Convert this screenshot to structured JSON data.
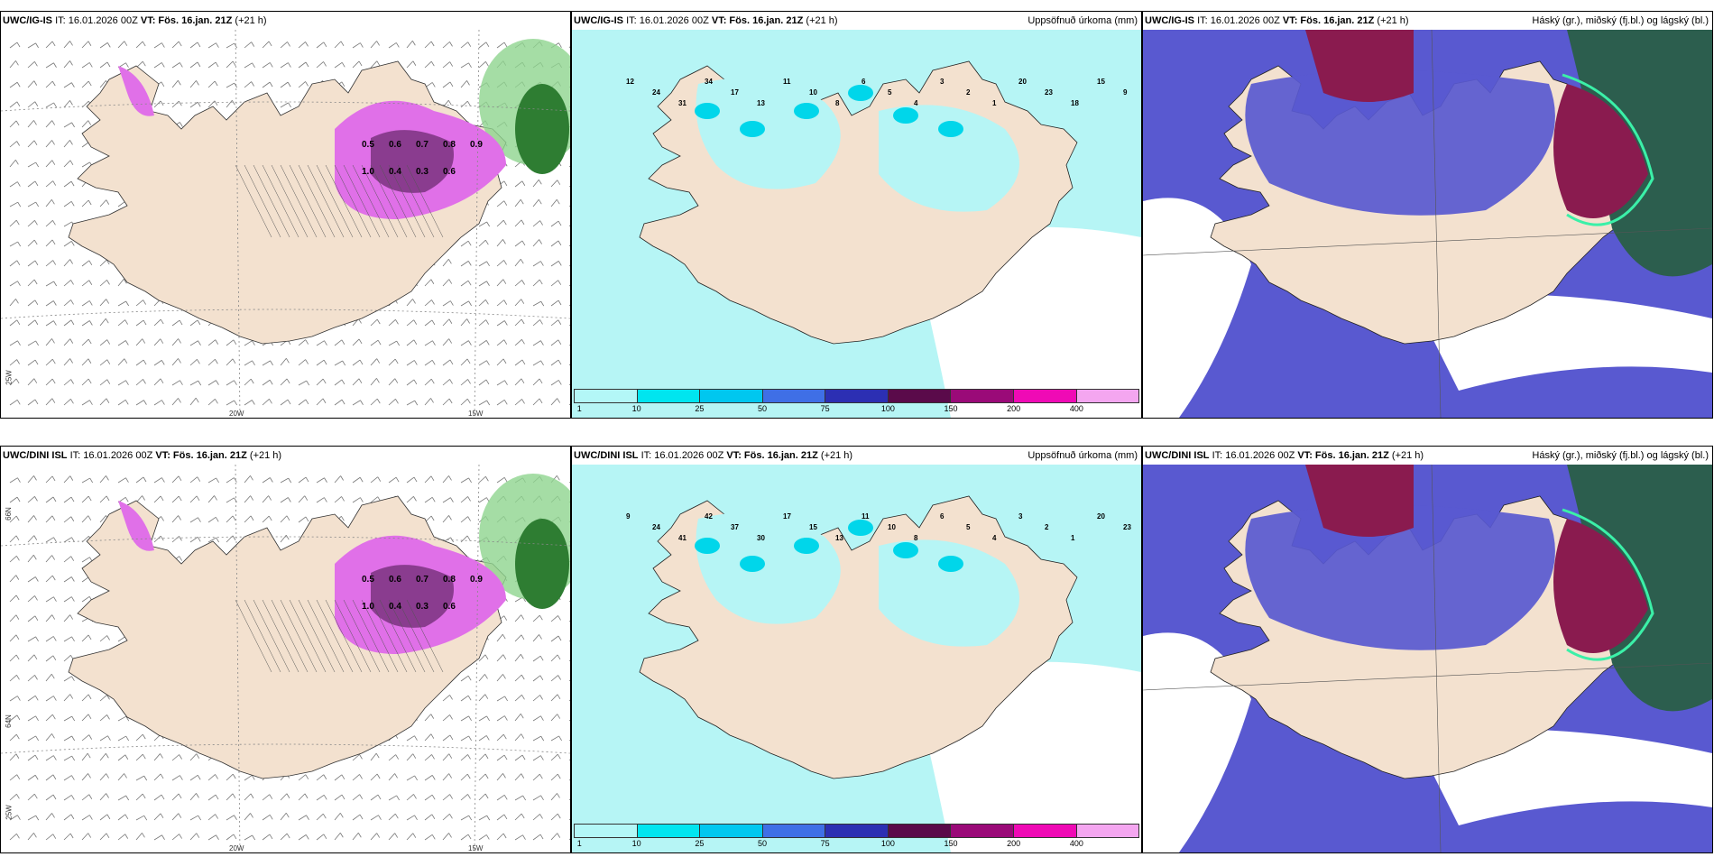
{
  "rows": [
    {
      "model": "UWC/IG-IS",
      "panels": [
        {
          "kind": "wind",
          "source": "UWC/IG-IS",
          "it": "IT: 16.01.2026 00Z",
          "vt": "VT: Fös. 16.jan. 21Z",
          "lead": "(+21 h)",
          "right_title": ""
        },
        {
          "kind": "precip",
          "source": "UWC/IG-IS",
          "it": "IT: 16.01.2026 00Z",
          "vt": "VT: Fös. 16.jan. 21Z",
          "lead": "(+21 h)",
          "right_title": "Uppsöfnuð úrkoma (mm)"
        },
        {
          "kind": "cloud",
          "source": "UWC/IG-IS",
          "it": "IT: 16.01.2026 00Z",
          "vt": "VT: Fös. 16.jan. 21Z",
          "lead": "(+21 h)",
          "right_title": "Háský (gr.), miðský (fj.bl.) og lágský (bl.)"
        }
      ]
    },
    {
      "model": "UWC/DINI ISL",
      "panels": [
        {
          "kind": "wind",
          "source": "UWC/DINI ISL",
          "it": "IT: 16.01.2026 00Z",
          "vt": "VT: Fös. 16.jan. 21Z",
          "lead": "(+21 h)",
          "right_title": ""
        },
        {
          "kind": "precip",
          "source": "UWC/DINI ISL",
          "it": "IT: 16.01.2026 00Z",
          "vt": "VT: Fös. 16.jan. 21Z",
          "lead": "(+21 h)",
          "right_title": "Uppsöfnuð úrkoma (mm)"
        },
        {
          "kind": "cloud",
          "source": "UWC/DINI ISL",
          "it": "IT: 16.01.2026 00Z",
          "vt": "VT: Fös. 16.jan. 21Z",
          "lead": "(+21 h)",
          "right_title": "Háský (gr.), miðský (fj.bl.) og lágský (bl.)"
        }
      ]
    }
  ],
  "axes": {
    "lon_20": "20W",
    "lon_15": "15W",
    "lat_25": "25W",
    "lat_66": "66N",
    "lat_64": "64N"
  },
  "precip_scale": {
    "labels": [
      "1",
      "10",
      "25",
      "50",
      "75",
      "100",
      "150",
      "200",
      "400"
    ],
    "colors": [
      "#b3f7f7",
      "#00e5ef",
      "#00c7ef",
      "#3f6fe6",
      "#2c2fb3",
      "#5a0a4a",
      "#9a0a78",
      "#ef0ab5",
      "#f4a6f0"
    ]
  },
  "colors": {
    "land": "#f3e1cf",
    "sea_precip": "#b6f5f5",
    "sea_wind": "#ffffff",
    "cloud_low": "#5959d0",
    "cloud_high": "#2c5e4e",
    "cloud_mid": "#8a1b4f"
  },
  "row1_wind_values": [
    "0.5",
    "0.6",
    "0.7",
    "0.8",
    "0.9",
    "1.0",
    "0.4",
    "0.3",
    "0.6"
  ],
  "row2_wind_values": [
    "0.5",
    "0.6",
    "0.7",
    "0.8",
    "0.9",
    "1.0",
    "0.4",
    "0.3",
    "0.6"
  ],
  "row1_precip_values": [
    "12",
    "24",
    "31",
    "34",
    "17",
    "13",
    "11",
    "10",
    "8",
    "6",
    "5",
    "4",
    "3",
    "2",
    "1",
    "20",
    "23",
    "18",
    "15",
    "9"
  ],
  "row2_precip_values": [
    "9",
    "24",
    "41",
    "42",
    "37",
    "30",
    "17",
    "15",
    "13",
    "11",
    "10",
    "8",
    "6",
    "5",
    "4",
    "3",
    "2",
    "1",
    "20",
    "23"
  ]
}
